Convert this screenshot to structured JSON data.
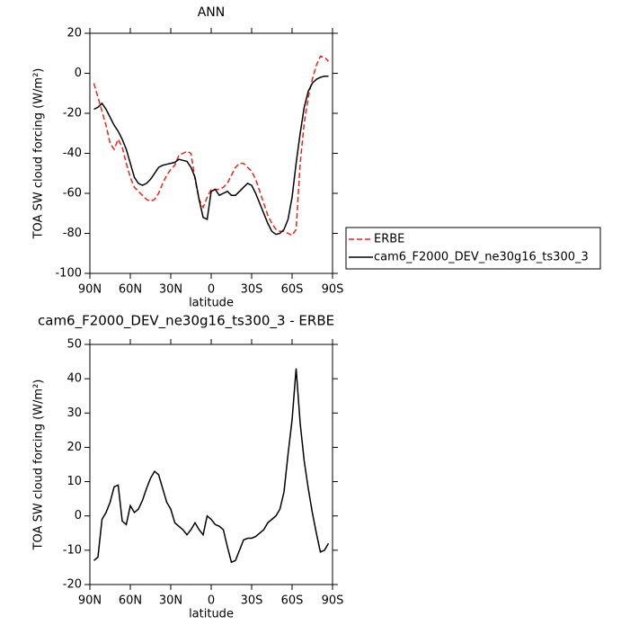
{
  "chart_data": [
    {
      "type": "line",
      "title": "ANN",
      "xlabel": "latitude",
      "ylabel": "TOA SW cloud forcing (W/m²)",
      "x": [
        87,
        84,
        81,
        78,
        75,
        72,
        69,
        66,
        63,
        60,
        57,
        54,
        51,
        48,
        45,
        42,
        39,
        36,
        33,
        30,
        27,
        24,
        21,
        18,
        15,
        12,
        9,
        6,
        3,
        0,
        -3,
        -6,
        -9,
        -12,
        -15,
        -18,
        -21,
        -24,
        -27,
        -30,
        -33,
        -36,
        -39,
        -42,
        -45,
        -48,
        -51,
        -54,
        -57,
        -60,
        -63,
        -66,
        -69,
        -72,
        -75,
        -78,
        -81,
        -84,
        -87
      ],
      "series": [
        {
          "name": "ERBE",
          "color": "#e8261c",
          "line_style": "dashed",
          "values": [
            -5,
            -12,
            -19,
            -26,
            -35,
            -38,
            -33,
            -37,
            -45,
            -52,
            -57,
            -59,
            -61,
            -63,
            -64,
            -63,
            -60,
            -55,
            -51,
            -48,
            -46,
            -41,
            -40,
            -39,
            -40,
            -53,
            -63,
            -67,
            -62,
            -58,
            -58,
            -58,
            -57,
            -55,
            -51,
            -47,
            -45,
            -45,
            -47,
            -49,
            -53,
            -59,
            -65,
            -71,
            -75,
            -78,
            -79,
            -79,
            -80,
            -81,
            -78,
            -45,
            -25,
            -12,
            -3,
            4,
            8.5,
            8,
            6
          ]
        },
        {
          "name": "cam6_F2000_DEV_ne30g16_ts300_3",
          "color": "#000000",
          "line_style": "solid",
          "values": [
            -18,
            -17,
            -15,
            -18,
            -22,
            -26,
            -29,
            -33,
            -38,
            -45,
            -52,
            -55,
            -56,
            -55,
            -53,
            -50,
            -47,
            -46,
            -45.5,
            -45,
            -44.5,
            -43,
            -43.5,
            -44,
            -47,
            -52,
            -63,
            -72,
            -73,
            -59,
            -58,
            -61,
            -60,
            -59,
            -61,
            -61,
            -59,
            -57,
            -55,
            -56,
            -60,
            -65,
            -70,
            -75,
            -79,
            -80.5,
            -80,
            -78,
            -73,
            -62,
            -45,
            -30,
            -17,
            -9,
            -5,
            -3,
            -2,
            -1.5,
            -1.5
          ]
        }
      ],
      "xlim": [
        90,
        -90
      ],
      "xticks": [
        {
          "value": 90,
          "label": "90N"
        },
        {
          "value": 60,
          "label": "60N"
        },
        {
          "value": 30,
          "label": "30N"
        },
        0,
        {
          "value": -30,
          "label": "30S"
        },
        {
          "value": -60,
          "label": "60S"
        },
        {
          "value": -90,
          "label": "90S"
        }
      ],
      "ylim": [
        -100,
        20
      ],
      "yticks": [
        -100,
        -80,
        -60,
        -40,
        -20,
        0,
        20
      ],
      "legend": "right"
    },
    {
      "type": "line",
      "title": "cam6_F2000_DEV_ne30g16_ts300_3 - ERBE",
      "xlabel": "latitude",
      "ylabel": "TOA SW cloud forcing (W/m²)",
      "x": [
        87,
        84,
        81,
        78,
        75,
        72,
        69,
        66,
        63,
        60,
        57,
        54,
        51,
        48,
        45,
        42,
        39,
        36,
        33,
        30,
        27,
        24,
        21,
        18,
        15,
        12,
        9,
        6,
        3,
        0,
        -3,
        -6,
        -9,
        -12,
        -15,
        -18,
        -21,
        -24,
        -27,
        -30,
        -33,
        -36,
        -39,
        -42,
        -45,
        -48,
        -51,
        -54,
        -57,
        -60,
        -63,
        -66,
        -69,
        -72,
        -75,
        -78,
        -81,
        -84,
        -87
      ],
      "series": [
        {
          "color": "#000000",
          "line_style": "solid",
          "values": [
            -13,
            -12,
            -1,
            1,
            4,
            8.5,
            9,
            -1.5,
            -2.5,
            3,
            1,
            2,
            4.5,
            8,
            11,
            13,
            12,
            8,
            4,
            2,
            -2,
            -3,
            -4,
            -5.5,
            -4,
            -2,
            -4,
            -5.5,
            0,
            -1,
            -2.5,
            -3,
            -4,
            -9,
            -13.5,
            -13,
            -10,
            -7,
            -6.5,
            -6.5,
            -6,
            -5,
            -4,
            -2,
            -1,
            0,
            2,
            7,
            18,
            28,
            43,
            27,
            16,
            8,
            1,
            -5,
            -10.5,
            -10,
            -8
          ]
        }
      ],
      "xlim": [
        90,
        -90
      ],
      "xticks": [
        {
          "value": 90,
          "label": "90N"
        },
        {
          "value": 60,
          "label": "60N"
        },
        {
          "value": 30,
          "label": "30N"
        },
        0,
        {
          "value": -30,
          "label": "30S"
        },
        {
          "value": -60,
          "label": "60S"
        },
        {
          "value": -90,
          "label": "90S"
        }
      ],
      "ylim": [
        -20,
        50
      ],
      "yticks": [
        -20,
        -10,
        0,
        10,
        20,
        30,
        40,
        50
      ]
    }
  ]
}
